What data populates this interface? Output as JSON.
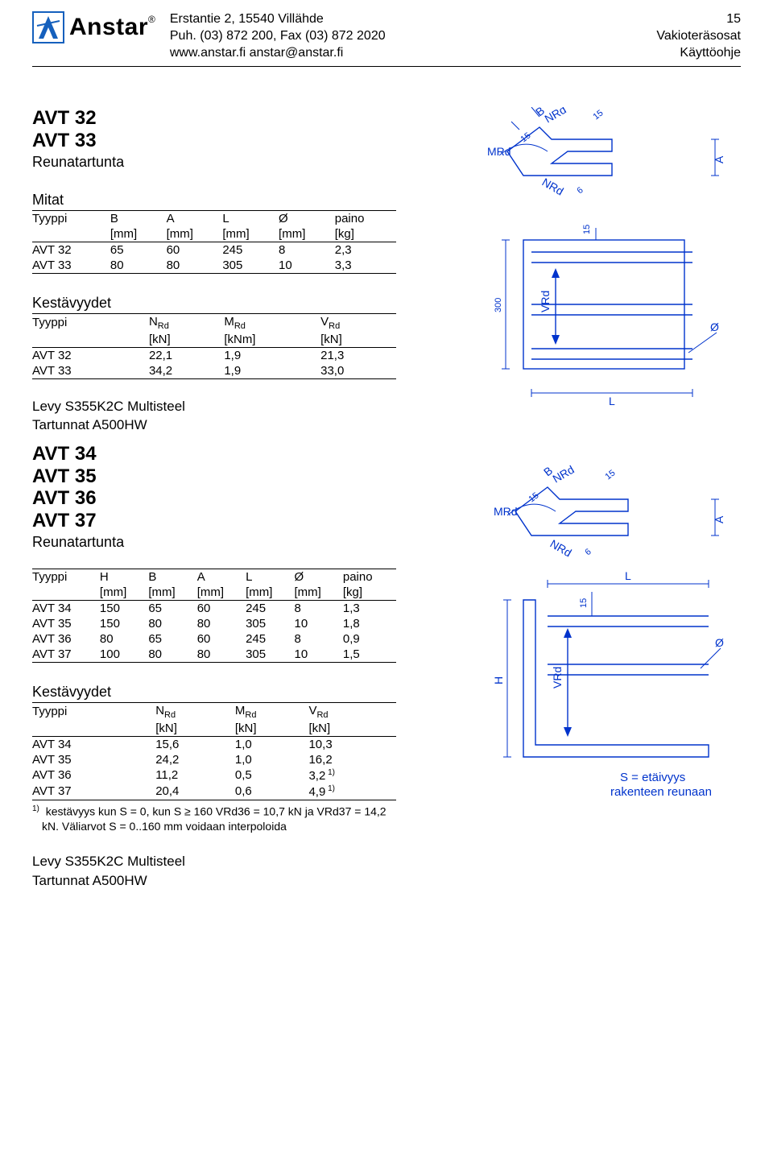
{
  "header": {
    "company": "Anstar",
    "addr1": "Erstantie 2,  15540 Villähde",
    "addr2": "Puh. (03) 872 200,  Fax (03) 872 2020",
    "addr3": "www.anstar.fi    anstar@anstar.fi",
    "page_no": "15",
    "doc_line1": "Vakioteräsosat",
    "doc_line2": "Käyttöohje"
  },
  "section1": {
    "titles": [
      "AVT 32",
      "AVT 33"
    ],
    "subtitle": "Reunatartunta",
    "mitat_label": "Mitat",
    "mitat_cols": [
      "Tyyppi",
      "B",
      "A",
      "L",
      "Ø",
      "paino"
    ],
    "mitat_units": [
      "",
      "[mm]",
      "[mm]",
      "[mm]",
      "[mm]",
      "[kg]"
    ],
    "mitat_rows": [
      [
        "AVT 32",
        "65",
        "60",
        "245",
        "8",
        "2,3"
      ],
      [
        "AVT 33",
        "80",
        "80",
        "305",
        "10",
        "3,3"
      ]
    ],
    "kest_label": "Kestävyydet",
    "kest_cols": [
      "Tyyppi",
      "N",
      "M",
      "V"
    ],
    "kest_sub": "Rd",
    "kest_units": [
      "",
      "[kN]",
      "[kNm]",
      "[kN]"
    ],
    "kest_rows": [
      [
        "AVT 32",
        "22,1",
        "1,9",
        "21,3"
      ],
      [
        "AVT 33",
        "34,2",
        "1,9",
        "33,0"
      ]
    ],
    "mat1": "Levy S355K2C Multisteel",
    "mat2": "Tartunnat A500HW"
  },
  "section2": {
    "titles": [
      "AVT 34",
      "AVT 35",
      "AVT 36",
      "AVT 37"
    ],
    "subtitle": "Reunatartunta",
    "mitat_cols": [
      "Tyyppi",
      "H",
      "B",
      "A",
      "L",
      "Ø",
      "paino"
    ],
    "mitat_units": [
      "",
      "[mm]",
      "[mm]",
      "[mm]",
      "[mm]",
      "[mm]",
      "[kg]"
    ],
    "mitat_rows": [
      [
        "AVT 34",
        "150",
        "65",
        "60",
        "245",
        "8",
        "1,3"
      ],
      [
        "AVT 35",
        "150",
        "80",
        "80",
        "305",
        "10",
        "1,8"
      ],
      [
        "AVT 36",
        "80",
        "65",
        "60",
        "245",
        "8",
        "0,9"
      ],
      [
        "AVT 37",
        "100",
        "80",
        "80",
        "305",
        "10",
        "1,5"
      ]
    ],
    "kest_label": "Kestävyydet",
    "kest_cols": [
      "Tyyppi",
      "N",
      "M",
      "V"
    ],
    "kest_sub": "Rd",
    "kest_units": [
      "",
      "[kN]",
      "[kN]",
      "[kN]"
    ],
    "kest_rows": [
      [
        "AVT 34",
        "15,6",
        "1,0",
        "10,3",
        ""
      ],
      [
        "AVT 35",
        "24,2",
        "1,0",
        "16,2",
        ""
      ],
      [
        "AVT 36",
        "11,2",
        "0,5",
        "3,2",
        "1)"
      ],
      [
        "AVT 37",
        "20,4",
        "0,6",
        "4,9",
        "1)"
      ]
    ],
    "footnote": "kestävyys kun S = 0, kun S ≥ 160  VRd36 = 10,7 kN ja VRd37 = 14,2 kN. Väliarvot S = 0..160 mm voidaan interpoloida",
    "footnote_marker": "1)",
    "mat1": "Levy S355K2C Multisteel",
    "mat2": "Tartunnat A500HW"
  },
  "diagram": {
    "labels": {
      "MRd": "MRd",
      "NRd": "NRd",
      "VRd": "VRd",
      "B": "B",
      "A": "A",
      "L": "L",
      "O": "Ø",
      "H": "H"
    },
    "dims": {
      "d15": "15",
      "d6": "6",
      "d300": "300"
    },
    "annotation": [
      "S = etäivyys",
      "rakenteen reunaan"
    ],
    "color": "#0033cc",
    "stroke_width": 1.4
  }
}
